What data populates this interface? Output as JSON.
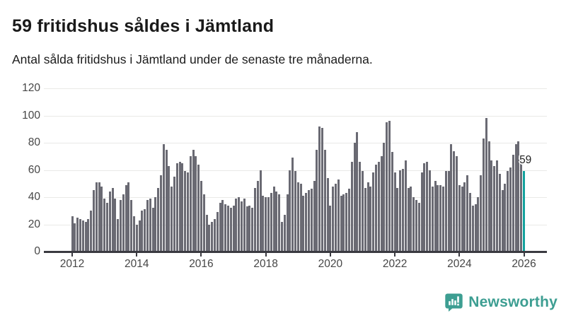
{
  "header": {
    "title": "59 fritidshus såldes i Jämtland",
    "subtitle": "Antal sålda fritidshus i Jämtland under de senaste tre månaderna."
  },
  "branding": {
    "name": "Newsworthy",
    "color": "#3d9e92",
    "icon": "newsworthy-speech-bubble-bar-chart-icon"
  },
  "chart_data": {
    "type": "bar",
    "title": "59 fritidshus såldes i Jämtland",
    "subtitle": "Antal sålda fritidshus i Jämtland under de senaste tre månaderna.",
    "xlabel": "",
    "ylabel": "",
    "x_monthly_start": "2012-01",
    "x_monthly_end": "2026-01",
    "xticks": [
      2012,
      2014,
      2016,
      2018,
      2020,
      2022,
      2024,
      2026
    ],
    "yticks": [
      0,
      20,
      40,
      60,
      80,
      100,
      120
    ],
    "ylim": [
      0,
      120
    ],
    "grid": "horizontal",
    "legend": "none",
    "bar_color": "#6a6a73",
    "highlight_color": "#12a19d",
    "highlight_index": 168,
    "highlight_label": "59",
    "values": [
      26,
      21,
      25,
      24,
      23,
      22,
      24,
      30,
      45,
      51,
      51,
      48,
      39,
      36,
      44,
      47,
      39,
      24,
      38,
      42,
      49,
      51,
      38,
      26,
      20,
      23,
      30,
      31,
      38,
      39,
      32,
      40,
      47,
      56,
      79,
      75,
      63,
      48,
      55,
      65,
      66,
      65,
      59,
      58,
      70,
      75,
      70,
      64,
      52,
      42,
      27,
      20,
      22,
      24,
      29,
      36,
      38,
      35,
      34,
      32,
      34,
      39,
      40,
      37,
      39,
      33,
      34,
      32,
      47,
      52,
      60,
      41,
      40,
      40,
      43,
      48,
      44,
      42,
      22,
      27,
      42,
      60,
      69,
      59,
      51,
      50,
      41,
      43,
      45,
      46,
      52,
      75,
      92,
      91,
      75,
      54,
      34,
      48,
      50,
      53,
      41,
      42,
      43,
      46,
      66,
      80,
      88,
      66,
      59,
      47,
      51,
      48,
      58,
      64,
      66,
      70,
      80,
      95,
      96,
      73,
      58,
      47,
      60,
      61,
      67,
      47,
      48,
      40,
      38,
      36,
      58,
      65,
      66,
      60,
      48,
      52,
      49,
      49,
      48,
      59,
      59,
      79,
      74,
      70,
      49,
      48,
      51,
      56,
      43,
      34,
      35,
      40,
      56,
      83,
      98,
      81,
      67,
      63,
      67,
      57,
      45,
      50,
      59,
      62,
      71,
      79,
      81,
      69,
      59
    ]
  }
}
